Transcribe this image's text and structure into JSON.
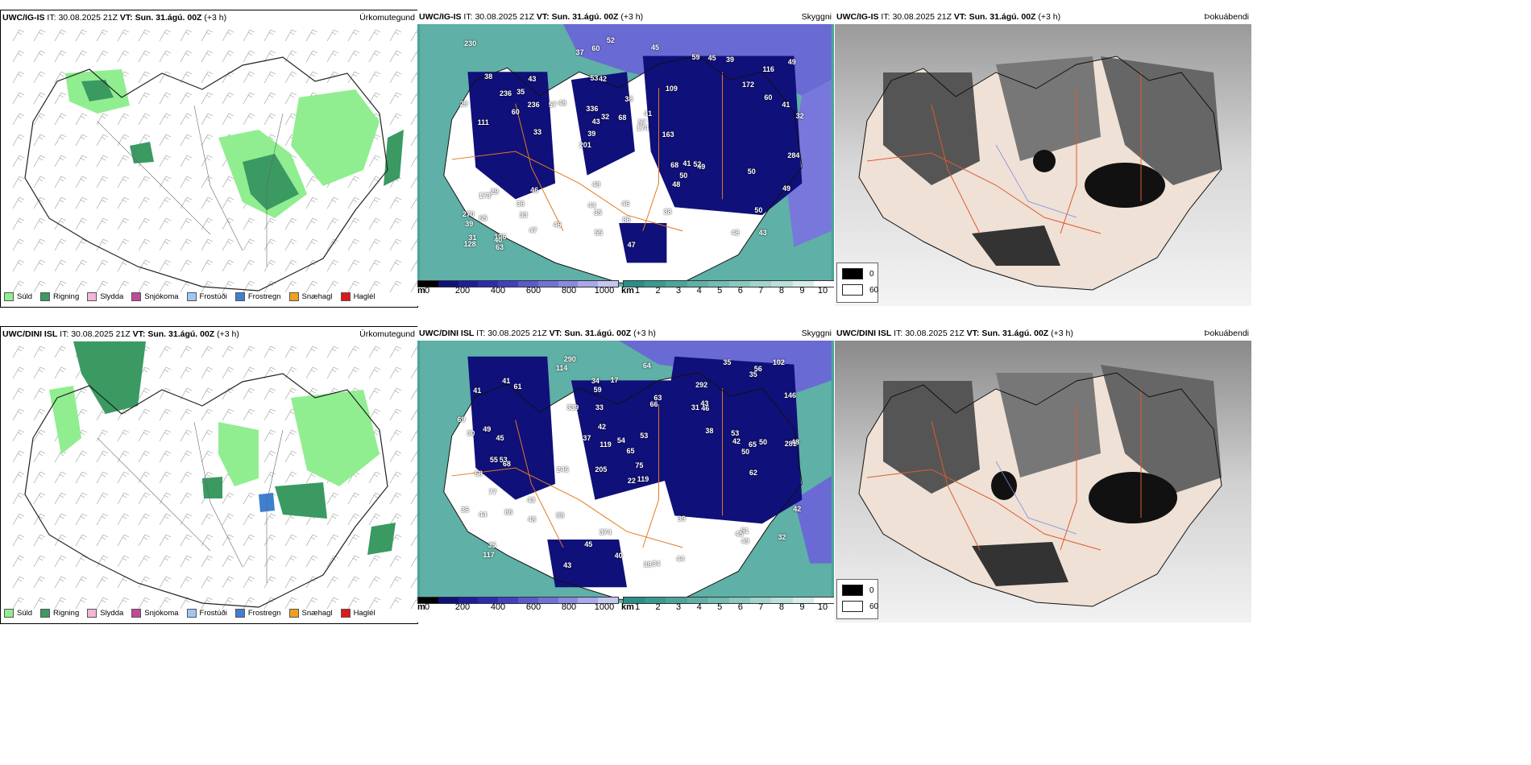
{
  "panels": [
    {
      "model": "UWC/IG-IS",
      "it_label": "IT:",
      "it_value": "30.08.2025 21Z",
      "vt_label": "VT:",
      "vt_value": "Sun. 31.ágú. 00Z",
      "offset": "(+3 h)",
      "variable": "Úrkomutegund"
    },
    {
      "model": "UWC/IG-IS",
      "it_label": "IT:",
      "it_value": "30.08.2025 21Z",
      "vt_label": "VT:",
      "vt_value": "Sun. 31.ágú. 00Z",
      "offset": "(+3 h)",
      "variable": "Skyggni"
    },
    {
      "model": "UWC/IG-IS",
      "it_label": "IT:",
      "it_value": "30.08.2025 21Z",
      "vt_label": "VT:",
      "vt_value": "Sun. 31.ágú. 00Z",
      "offset": "(+3 h)",
      "variable": "Þokuábendi"
    },
    {
      "model": "UWC/DINI ISL",
      "it_label": "IT:",
      "it_value": "30.08.2025 21Z",
      "vt_label": "VT:",
      "vt_value": "Sun. 31.ágú. 00Z",
      "offset": "(+3 h)",
      "variable": "Úrkomutegund"
    },
    {
      "model": "UWC/DINI ISL",
      "it_label": "IT:",
      "it_value": "30.08.2025 21Z",
      "vt_label": "VT:",
      "vt_value": "Sun. 31.ágú. 00Z",
      "offset": "(+3 h)",
      "variable": "Skyggni"
    },
    {
      "model": "UWC/DINI ISL",
      "it_label": "IT:",
      "it_value": "30.08.2025 21Z",
      "vt_label": "VT:",
      "vt_value": "Sun. 31.ágú. 00Z",
      "offset": "(+3 h)",
      "variable": "Þokuábendi"
    }
  ],
  "precip_legend": [
    {
      "label": "Súld",
      "color": "#90ee90"
    },
    {
      "label": "Rigning",
      "color": "#3a9a62"
    },
    {
      "label": "Slydda",
      "color": "#f4b6d6"
    },
    {
      "label": "Snjókoma",
      "color": "#c04a9a"
    },
    {
      "label": "Frostúði",
      "color": "#9ec8f0"
    },
    {
      "label": "Frostregn",
      "color": "#3f7fd0"
    },
    {
      "label": "Snæhagl",
      "color": "#f0a020"
    },
    {
      "label": "Haglél",
      "color": "#e01818"
    }
  ],
  "vis_m_scale": {
    "unit": "m",
    "ticks": [
      "0",
      "200",
      "400",
      "600",
      "800",
      "1000"
    ],
    "colors": [
      "#000000",
      "#10107a",
      "#1e1e9a",
      "#2c2cb0",
      "#4040c0",
      "#5a5acc",
      "#7272d6",
      "#8a8ae0",
      "#a8a8ea",
      "#c6c6f2"
    ]
  },
  "vis_km_scale": {
    "unit": "km",
    "ticks": [
      "1",
      "2",
      "3",
      "4",
      "5",
      "6",
      "7",
      "8",
      "9",
      "10"
    ],
    "colors": [
      "#2a8f86",
      "#3b9a90",
      "#4da59a",
      "#60b0a6",
      "#75bcb2",
      "#8bc8bf",
      "#a2d4cc",
      "#bbe0da",
      "#d6ede9",
      "#ffffff"
    ]
  },
  "fog_legend": {
    "min_label": "0",
    "max_label": "60",
    "min_color": "#000000",
    "max_color": "#ffffff"
  },
  "vis_labels_top": [
    "43",
    "111",
    "116",
    "201",
    "109",
    "106",
    "53",
    "38",
    "29",
    "48",
    "39",
    "33",
    "42",
    "41",
    "49",
    "38",
    "60",
    "32",
    "68",
    "60",
    "39",
    "44",
    "43",
    "43",
    "59",
    "46",
    "48",
    "50",
    "52",
    "47",
    "57",
    "60",
    "48",
    "47",
    "41",
    "57",
    "31",
    "35",
    "174",
    "173",
    "172",
    "49",
    "50",
    "38",
    "36",
    "63",
    "128",
    "46",
    "39",
    "52",
    "33",
    "29",
    "35",
    "45",
    "40",
    "45",
    "37",
    "32",
    "49",
    "48",
    "46",
    "41",
    "236",
    "270",
    "230",
    "236",
    "284",
    "336",
    "86",
    "68",
    "65",
    "163",
    "50",
    "55"
  ],
  "vis_labels_bottom": [
    "290",
    "292",
    "281",
    "205",
    "119",
    "53",
    "41",
    "31",
    "68",
    "66",
    "65",
    "117",
    "114",
    "246",
    "38",
    "34",
    "374",
    "35",
    "38",
    "43",
    "45",
    "55",
    "48",
    "50",
    "36",
    "49",
    "119",
    "42",
    "51",
    "44",
    "45",
    "63",
    "86",
    "37",
    "39",
    "42",
    "53",
    "45",
    "102",
    "17",
    "35",
    "43",
    "44",
    "41",
    "40",
    "46",
    "49",
    "43",
    "69",
    "75",
    "59",
    "50",
    "53",
    "35",
    "64",
    "48",
    "42",
    "54",
    "56",
    "33",
    "32",
    "62",
    "61",
    "88",
    "22",
    "30",
    "65",
    "68",
    "339",
    "146",
    "77",
    "34"
  ]
}
